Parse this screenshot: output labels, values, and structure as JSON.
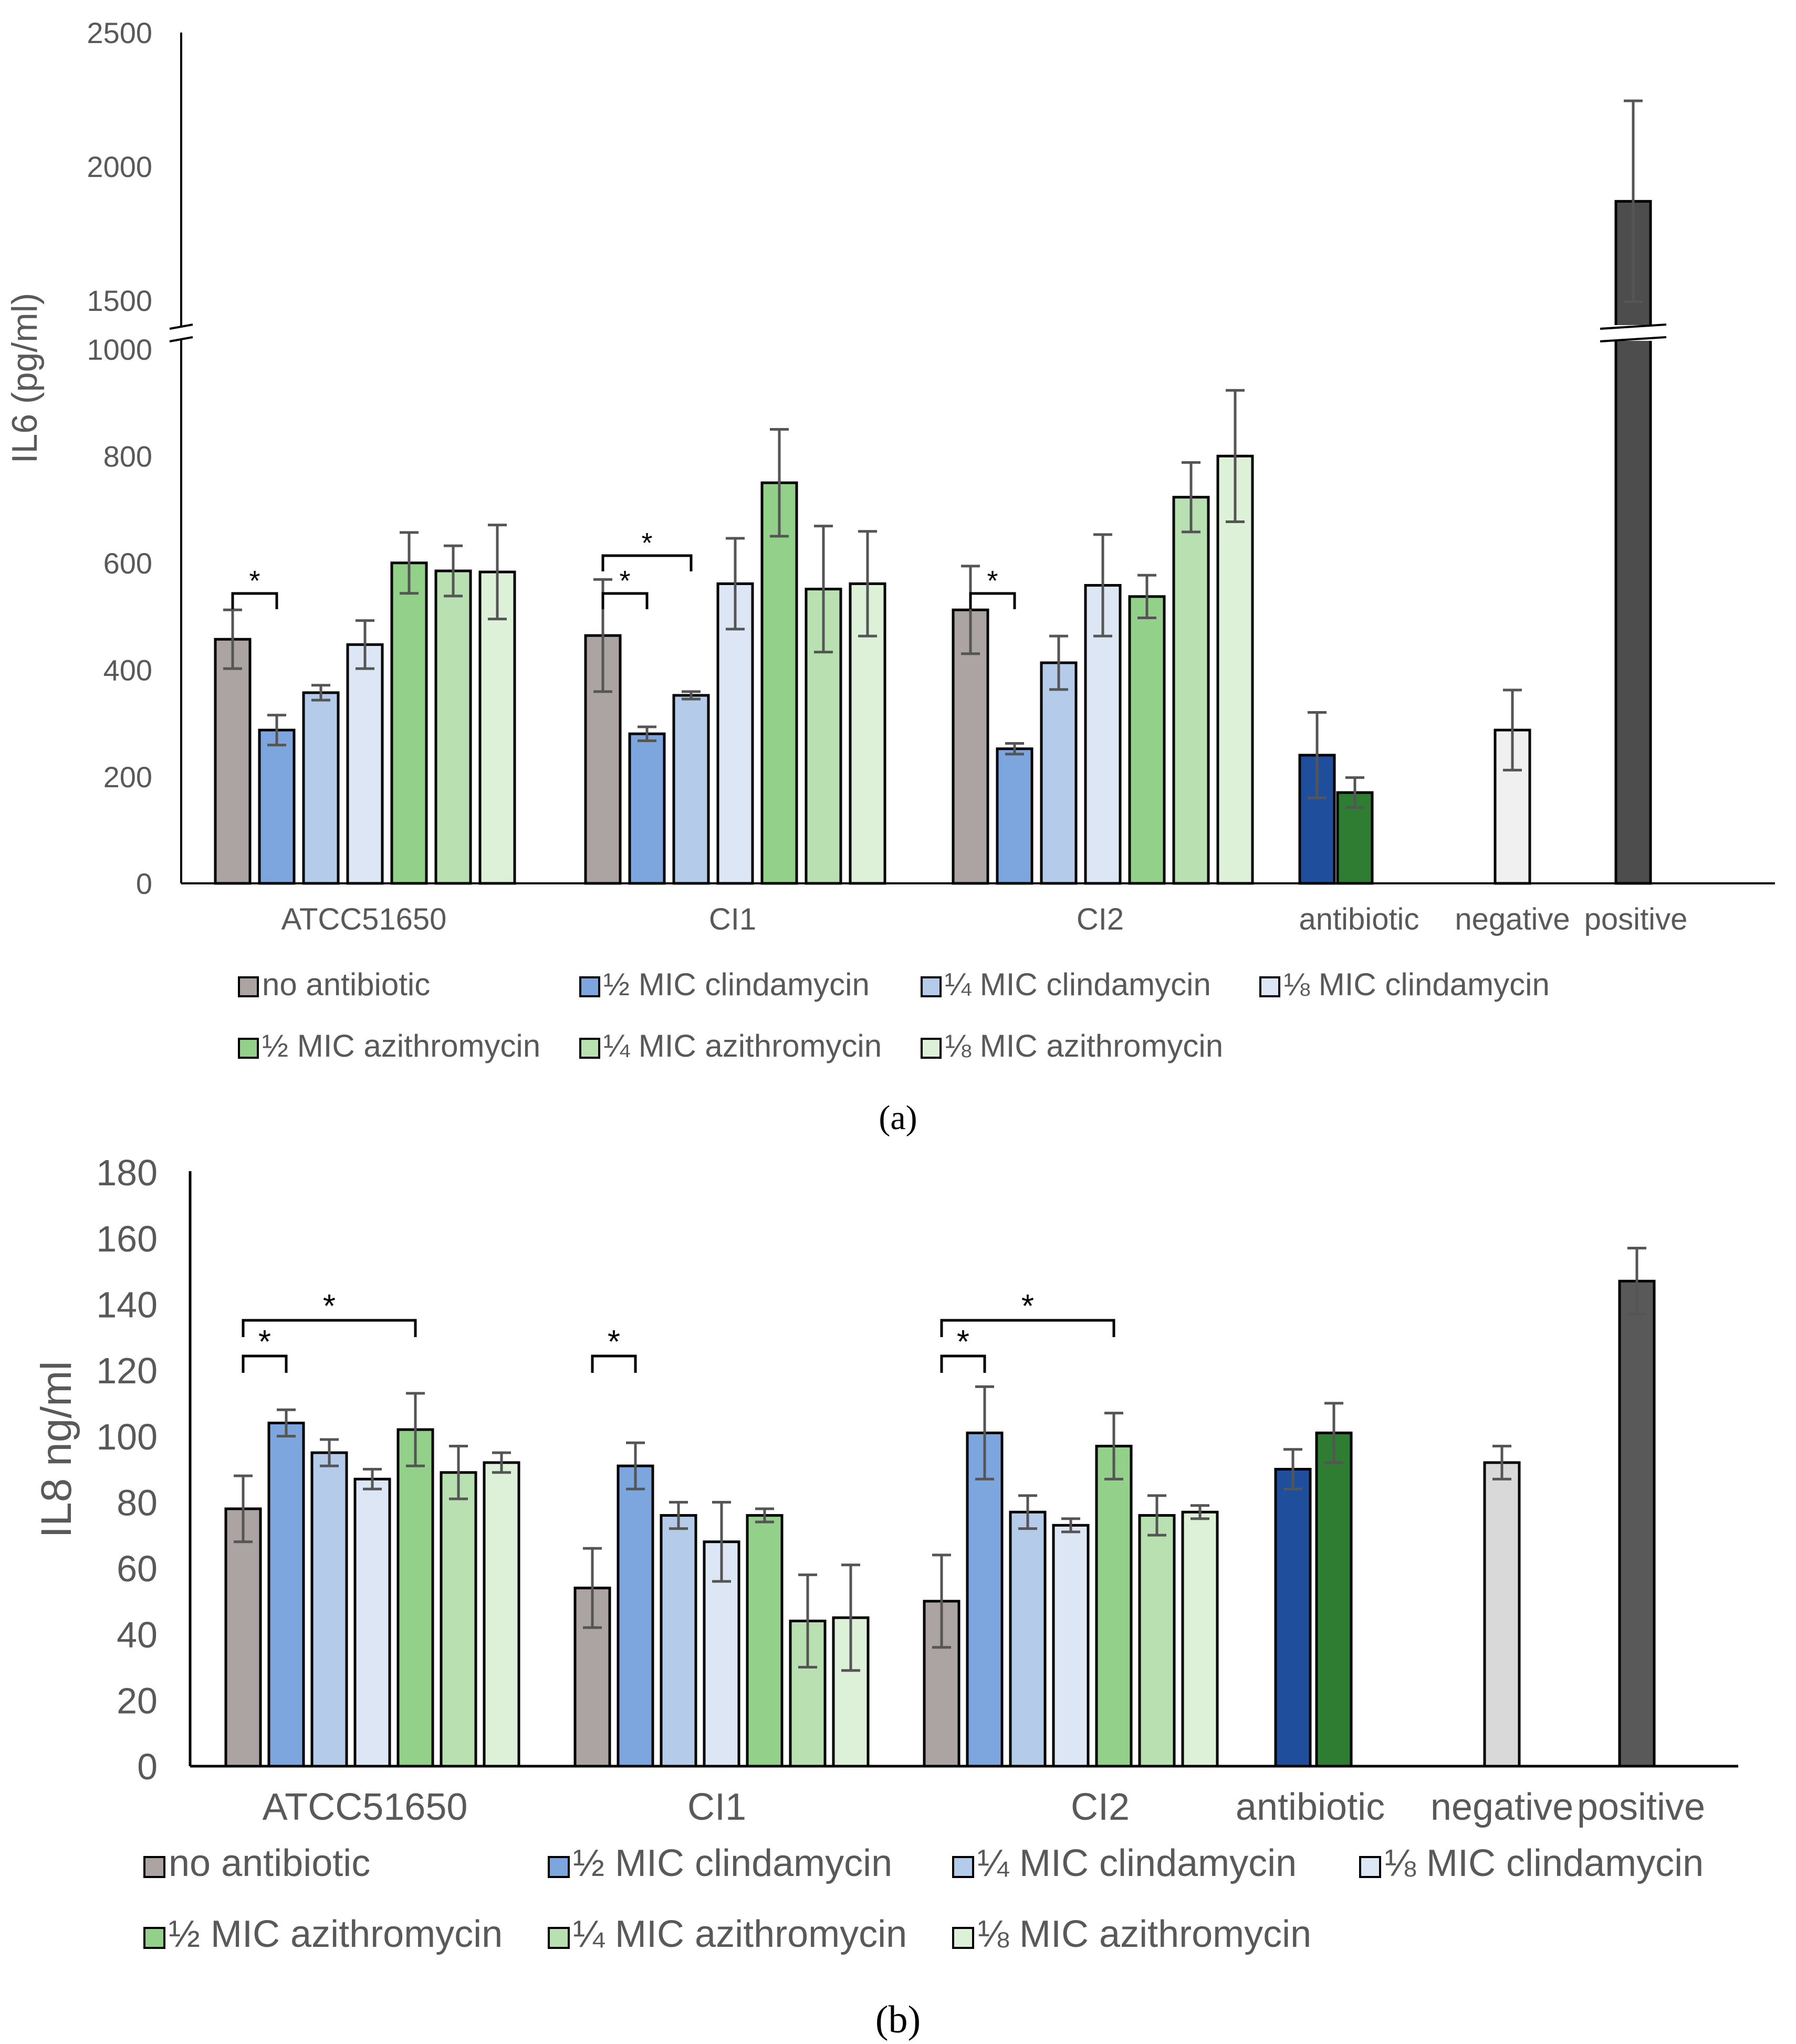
{
  "chart_data": [
    {
      "panel": "(a)",
      "type": "bar",
      "ylabel": "IL6 (pg/ml)",
      "y_axis_break": {
        "lower": [
          0,
          1000
        ],
        "upper": [
          1500,
          2500
        ]
      },
      "yticks": [
        0,
        200,
        400,
        600,
        800,
        1000,
        1500,
        2000,
        2500
      ],
      "groups": [
        "ATCC51650",
        "CI1",
        "CI2",
        "antibiotic",
        "negative",
        "positive"
      ],
      "legend": [
        {
          "name": "no antibiotic",
          "color": "#aba4a3"
        },
        {
          "name": "½ MIC clindamycin",
          "color": "#7da6df"
        },
        {
          "name": "¼ MIC clindamycin",
          "color": "#b4cbea"
        },
        {
          "name": "⅛ MIC clindamycin",
          "color": "#dde6f4"
        },
        {
          "name": "½ MIC azithromycin",
          "color": "#93d08a"
        },
        {
          "name": "¼ MIC azithromycin",
          "color": "#b9e0b0"
        },
        {
          "name": "⅛ MIC azithromycin",
          "color": "#ddf0d8"
        }
      ],
      "bars": [
        {
          "group": "ATCC51650",
          "series": "no antibiotic",
          "color": "#aba4a3",
          "value": 457,
          "err": 55
        },
        {
          "group": "ATCC51650",
          "series": "½ MIC clindamycin",
          "color": "#7da6df",
          "value": 287,
          "err": 28
        },
        {
          "group": "ATCC51650",
          "series": "¼ MIC clindamycin",
          "color": "#b4cbea",
          "value": 357,
          "err": 14
        },
        {
          "group": "ATCC51650",
          "series": "⅛ MIC clindamycin",
          "color": "#dde6f4",
          "value": 447,
          "err": 45
        },
        {
          "group": "ATCC51650",
          "series": "½ MIC azithromycin",
          "color": "#93d08a",
          "value": 600,
          "err": 57
        },
        {
          "group": "ATCC51650",
          "series": "¼ MIC azithromycin",
          "color": "#b9e0b0",
          "value": 585,
          "err": 47
        },
        {
          "group": "ATCC51650",
          "series": "⅛ MIC azithromycin",
          "color": "#ddf0d8",
          "value": 583,
          "err": 88
        },
        {
          "group": "CI1",
          "series": "no antibiotic",
          "color": "#aba4a3",
          "value": 464,
          "err": 105
        },
        {
          "group": "CI1",
          "series": "½ MIC clindamycin",
          "color": "#7da6df",
          "value": 280,
          "err": 13
        },
        {
          "group": "CI1",
          "series": "¼ MIC clindamycin",
          "color": "#b4cbea",
          "value": 352,
          "err": 7
        },
        {
          "group": "CI1",
          "series": "⅛ MIC clindamycin",
          "color": "#dde6f4",
          "value": 561,
          "err": 85
        },
        {
          "group": "CI1",
          "series": "½ MIC azithromycin",
          "color": "#93d08a",
          "value": 750,
          "err": 100
        },
        {
          "group": "CI1",
          "series": "¼ MIC azithromycin",
          "color": "#b9e0b0",
          "value": 551,
          "err": 118
        },
        {
          "group": "CI1",
          "series": "⅛ MIC azithromycin",
          "color": "#ddf0d8",
          "value": 561,
          "err": 98
        },
        {
          "group": "CI2",
          "series": "no antibiotic",
          "color": "#aba4a3",
          "value": 512,
          "err": 82
        },
        {
          "group": "CI2",
          "series": "½ MIC clindamycin",
          "color": "#7da6df",
          "value": 252,
          "err": 10
        },
        {
          "group": "CI2",
          "series": "¼ MIC clindamycin",
          "color": "#b4cbea",
          "value": 413,
          "err": 50
        },
        {
          "group": "CI2",
          "series": "⅛ MIC clindamycin",
          "color": "#dde6f4",
          "value": 558,
          "err": 95
        },
        {
          "group": "CI2",
          "series": "½ MIC azithromycin",
          "color": "#93d08a",
          "value": 537,
          "err": 40
        },
        {
          "group": "CI2",
          "series": "¼ MIC azithromycin",
          "color": "#b9e0b0",
          "value": 723,
          "err": 65
        },
        {
          "group": "CI2",
          "series": "⅛ MIC azithromycin",
          "color": "#ddf0d8",
          "value": 800,
          "err": 123
        },
        {
          "group": "antibiotic",
          "series": "clindamycin",
          "color": "#1f4e9c",
          "value": 240,
          "err": 80
        },
        {
          "group": "antibiotic",
          "series": "azithromycin",
          "color": "#2e7d32",
          "value": 170,
          "err": 28
        },
        {
          "group": "negative",
          "series": "negative",
          "color": "#f0f0f0",
          "value": 287,
          "err": 75
        },
        {
          "group": "positive",
          "series": "positive",
          "color": "#4d4d4d",
          "value": 1870,
          "err": 375
        }
      ],
      "significance": [
        {
          "group": "ATCC51650",
          "from": 0,
          "to": 1,
          "label": "*"
        },
        {
          "group": "CI1",
          "from": 0,
          "to": 1,
          "label": "*"
        },
        {
          "group": "CI1",
          "from": 0,
          "to": 2,
          "label": "*"
        },
        {
          "group": "CI2",
          "from": 0,
          "to": 1,
          "label": "*"
        }
      ]
    },
    {
      "panel": "(b)",
      "type": "bar",
      "ylabel": "IL8 ng/ml",
      "ylim": [
        0,
        180
      ],
      "yticks": [
        0,
        20,
        40,
        60,
        80,
        100,
        120,
        140,
        160,
        180
      ],
      "groups": [
        "ATCC51650",
        "CI1",
        "CI2",
        "antibiotic",
        "negative",
        "positive"
      ],
      "legend": [
        {
          "name": "no antibiotic",
          "color": "#aba4a3"
        },
        {
          "name": "½ MIC clindamycin",
          "color": "#7da6df"
        },
        {
          "name": "¼ MIC clindamycin",
          "color": "#b4cbea"
        },
        {
          "name": "⅛ MIC clindamycin",
          "color": "#dde6f4"
        },
        {
          "name": "½ MIC azithromycin",
          "color": "#93d08a"
        },
        {
          "name": "¼ MIC azithromycin",
          "color": "#b9e0b0"
        },
        {
          "name": "⅛ MIC azithromycin",
          "color": "#ddf0d8"
        }
      ],
      "bars": [
        {
          "group": "ATCC51650",
          "series": "no antibiotic",
          "color": "#aba4a3",
          "value": 78,
          "err": 10
        },
        {
          "group": "ATCC51650",
          "series": "½ MIC clindamycin",
          "color": "#7da6df",
          "value": 104,
          "err": 4
        },
        {
          "group": "ATCC51650",
          "series": "¼ MIC clindamycin",
          "color": "#b4cbea",
          "value": 95,
          "err": 4
        },
        {
          "group": "ATCC51650",
          "series": "⅛ MIC clindamycin",
          "color": "#dde6f4",
          "value": 87,
          "err": 3
        },
        {
          "group": "ATCC51650",
          "series": "½ MIC azithromycin",
          "color": "#93d08a",
          "value": 102,
          "err": 11
        },
        {
          "group": "ATCC51650",
          "series": "¼ MIC azithromycin",
          "color": "#b9e0b0",
          "value": 89,
          "err": 8
        },
        {
          "group": "ATCC51650",
          "series": "⅛ MIC azithromycin",
          "color": "#ddf0d8",
          "value": 92,
          "err": 3
        },
        {
          "group": "CI1",
          "series": "no antibiotic",
          "color": "#aba4a3",
          "value": 54,
          "err": 12
        },
        {
          "group": "CI1",
          "series": "½ MIC clindamycin",
          "color": "#7da6df",
          "value": 91,
          "err": 7
        },
        {
          "group": "CI1",
          "series": "¼ MIC clindamycin",
          "color": "#b4cbea",
          "value": 76,
          "err": 4
        },
        {
          "group": "CI1",
          "series": "⅛ MIC clindamycin",
          "color": "#dde6f4",
          "value": 68,
          "err": 12
        },
        {
          "group": "CI1",
          "series": "½ MIC azithromycin",
          "color": "#93d08a",
          "value": 76,
          "err": 2
        },
        {
          "group": "CI1",
          "series": "¼ MIC azithromycin",
          "color": "#b9e0b0",
          "value": 44,
          "err": 14
        },
        {
          "group": "CI1",
          "series": "⅛ MIC azithromycin",
          "color": "#ddf0d8",
          "value": 45,
          "err": 16
        },
        {
          "group": "CI2",
          "series": "no antibiotic",
          "color": "#aba4a3",
          "value": 50,
          "err": 14
        },
        {
          "group": "CI2",
          "series": "½ MIC clindamycin",
          "color": "#7da6df",
          "value": 101,
          "err": 14
        },
        {
          "group": "CI2",
          "series": "¼ MIC clindamycin",
          "color": "#b4cbea",
          "value": 77,
          "err": 5
        },
        {
          "group": "CI2",
          "series": "⅛ MIC clindamycin",
          "color": "#dde6f4",
          "value": 73,
          "err": 2
        },
        {
          "group": "CI2",
          "series": "½ MIC azithromycin",
          "color": "#93d08a",
          "value": 97,
          "err": 10
        },
        {
          "group": "CI2",
          "series": "¼ MIC azithromycin",
          "color": "#b9e0b0",
          "value": 76,
          "err": 6
        },
        {
          "group": "CI2",
          "series": "⅛ MIC azithromycin",
          "color": "#ddf0d8",
          "value": 77,
          "err": 2
        },
        {
          "group": "antibiotic",
          "series": "clindamycin",
          "color": "#1f4e9c",
          "value": 90,
          "err": 6
        },
        {
          "group": "antibiotic",
          "series": "azithromycin",
          "color": "#2e7d32",
          "value": 101,
          "err": 9
        },
        {
          "group": "negative",
          "series": "negative",
          "color": "#d9d9d9",
          "value": 92,
          "err": 5
        },
        {
          "group": "positive",
          "series": "positive",
          "color": "#595959",
          "value": 147,
          "err": 10
        }
      ],
      "significance": [
        {
          "group": "ATCC51650",
          "from": 0,
          "to": 1,
          "label": "*"
        },
        {
          "group": "ATCC51650",
          "from": 0,
          "to": 4,
          "label": "*"
        },
        {
          "group": "CI1",
          "from": 0,
          "to": 1,
          "label": "*"
        },
        {
          "group": "CI2",
          "from": 0,
          "to": 1,
          "label": "*"
        },
        {
          "group": "CI2",
          "from": 0,
          "to": 4,
          "label": "*"
        }
      ]
    }
  ]
}
